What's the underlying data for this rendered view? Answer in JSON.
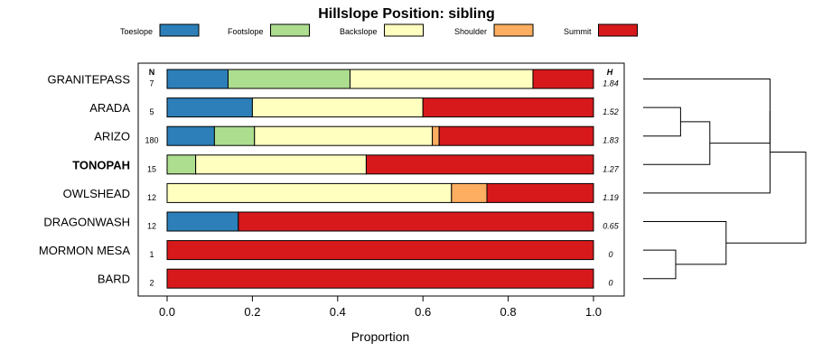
{
  "chart_data": {
    "type": "bar",
    "stacked": true,
    "orientation": "horizontal",
    "title": "Hillslope Position: sibling",
    "xlabel": "Proportion",
    "xlim": [
      0,
      1
    ],
    "xticks": [
      "0.0",
      "0.2",
      "0.4",
      "0.6",
      "0.8",
      "1.0"
    ],
    "legend_position": "top",
    "n_header": "N",
    "h_header": "H",
    "series": [
      {
        "name": "Toeslope",
        "color": "#2c7fb8"
      },
      {
        "name": "Footslope",
        "color": "#addd8e"
      },
      {
        "name": "Backslope",
        "color": "#ffffbf"
      },
      {
        "name": "Shoulder",
        "color": "#fdae61"
      },
      {
        "name": "Summit",
        "color": "#d7191c"
      }
    ],
    "rows": [
      {
        "label": "GRANITEPASS",
        "bold": false,
        "n": "7",
        "h": "1.84",
        "values": [
          0.143,
          0.286,
          0.429,
          0,
          0.142
        ]
      },
      {
        "label": "ARADA",
        "bold": false,
        "n": "5",
        "h": "1.52",
        "values": [
          0.2,
          0,
          0.4,
          0,
          0.4
        ]
      },
      {
        "label": "ARIZO",
        "bold": false,
        "n": "180",
        "h": "1.83",
        "values": [
          0.111,
          0.094,
          0.417,
          0.016,
          0.362
        ]
      },
      {
        "label": "TONOPAH",
        "bold": true,
        "n": "15",
        "h": "1.27",
        "values": [
          0,
          0.067,
          0.4,
          0,
          0.533
        ]
      },
      {
        "label": "OWLSHEAD",
        "bold": false,
        "n": "12",
        "h": "1.19",
        "values": [
          0,
          0,
          0.667,
          0.083,
          0.25
        ]
      },
      {
        "label": "DRAGONWASH",
        "bold": false,
        "n": "12",
        "h": "0.65",
        "values": [
          0.167,
          0,
          0,
          0,
          0.833
        ]
      },
      {
        "label": "MORMON MESA",
        "bold": false,
        "n": "1",
        "h": "0",
        "values": [
          0,
          0,
          0,
          0,
          1
        ]
      },
      {
        "label": "BARD",
        "bold": false,
        "n": "2",
        "h": "0",
        "values": [
          0,
          0,
          0,
          0,
          1
        ]
      }
    ],
    "dendrogram": {
      "merges": [
        {
          "left": "MORMON MESA",
          "right": "BARD",
          "height": 0.2
        },
        {
          "left": "DRAGONWASH",
          "right": "c0",
          "height": 0.51
        },
        {
          "left": "ARADA",
          "right": "ARIZO",
          "height": 0.23
        },
        {
          "left": "c2",
          "right": "TONOPAH",
          "height": 0.41
        },
        {
          "left": "GRANITEPASS",
          "right": "c3",
          "height": 0.78
        },
        {
          "left": "c4",
          "right": "OWLSHEAD",
          "height": 0.78
        },
        {
          "left": "c1",
          "right": "c5",
          "height": 1.0
        }
      ]
    }
  }
}
